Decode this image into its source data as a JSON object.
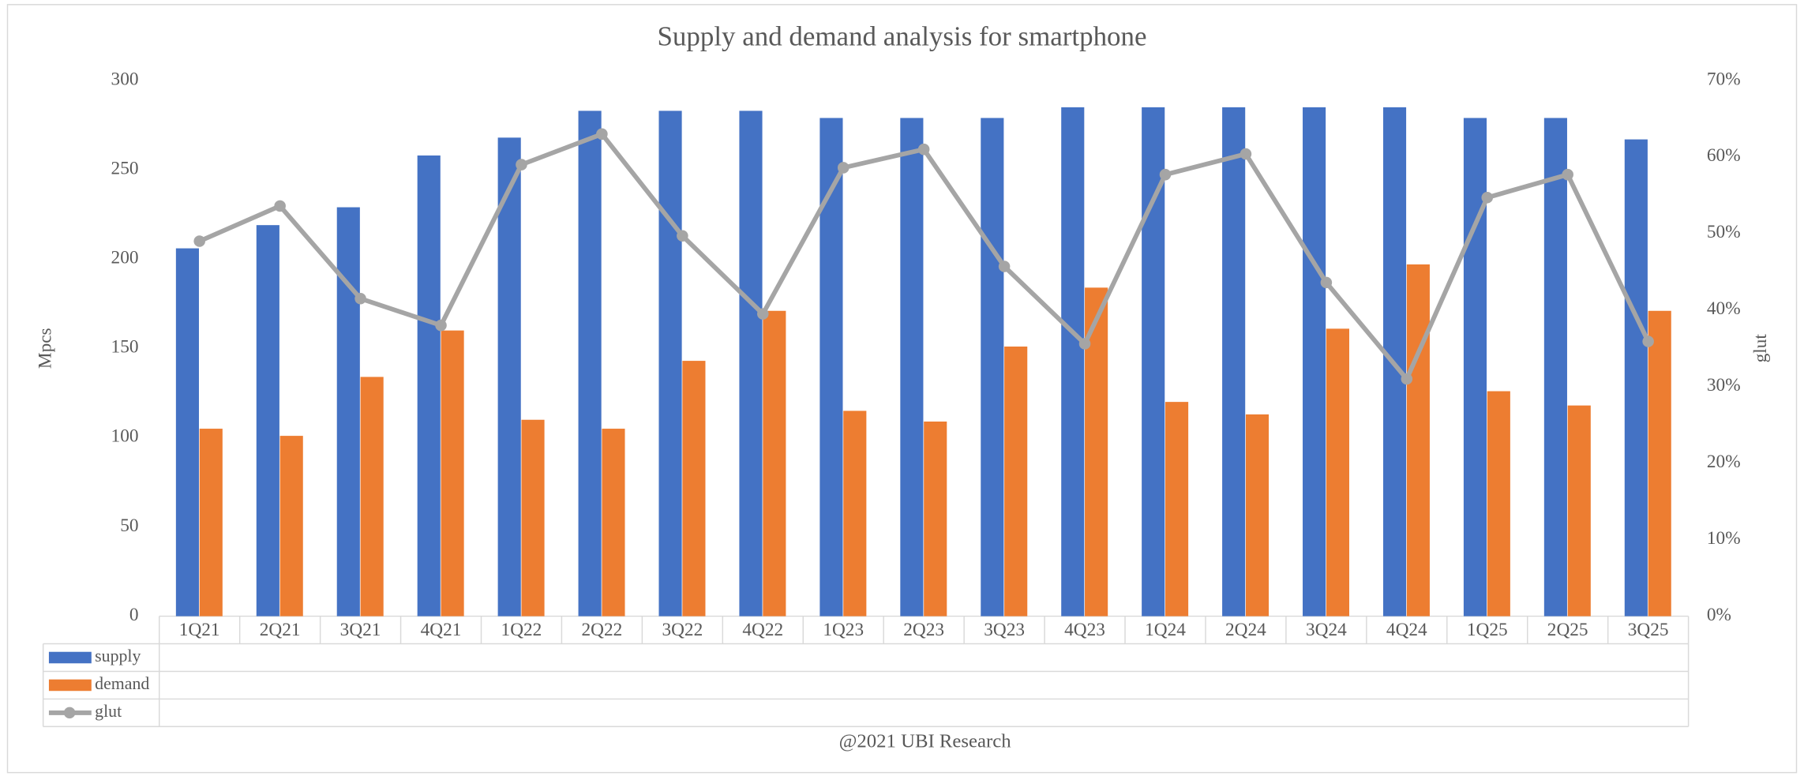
{
  "chart_data": {
    "type": "bar",
    "title": "Supply and demand analysis for smartphone",
    "ylabel": "Mpcs",
    "y2label": "glut",
    "source": "@2021 UBI Research",
    "categories": [
      "1Q21",
      "2Q21",
      "3Q21",
      "4Q21",
      "1Q22",
      "2Q22",
      "3Q22",
      "4Q22",
      "1Q23",
      "2Q23",
      "3Q23",
      "4Q23",
      "1Q24",
      "2Q24",
      "3Q24",
      "4Q24",
      "1Q25",
      "2Q25",
      "3Q25"
    ],
    "series": [
      {
        "name": "supply",
        "type": "bar",
        "color": "#4472c4",
        "values": [
          206,
          219,
          229,
          258,
          268,
          283,
          283,
          283,
          279,
          279,
          279,
          285,
          285,
          285,
          285,
          285,
          279,
          279,
          267
        ]
      },
      {
        "name": "demand",
        "type": "bar",
        "color": "#ed7d31",
        "values": [
          105,
          101,
          134,
          160,
          110,
          105,
          143,
          171,
          115,
          109,
          151,
          184,
          120,
          113,
          161,
          197,
          126,
          118,
          171
        ]
      },
      {
        "name": "glut",
        "type": "line",
        "axis": "y2",
        "color": "#a5a5a5",
        "values": [
          49,
          53.6,
          41.5,
          38,
          59,
          63,
          49.7,
          39.5,
          58.6,
          61,
          45.7,
          35.6,
          57.7,
          60.4,
          43.6,
          31,
          54.7,
          57.7,
          35.9
        ]
      }
    ],
    "ylim": [
      0,
      300
    ],
    "yticks": [
      0,
      50,
      100,
      150,
      200,
      250,
      300
    ],
    "y2lim": [
      0,
      70
    ],
    "y2ticks": [
      {
        "value": 0,
        "label": "0%"
      },
      {
        "value": 10,
        "label": "10%"
      },
      {
        "value": 20,
        "label": "20%"
      },
      {
        "value": 30,
        "label": "30%"
      },
      {
        "value": 40,
        "label": "40%"
      },
      {
        "value": 50,
        "label": "50%"
      },
      {
        "value": 60,
        "label": "60%"
      },
      {
        "value": 70,
        "label": "70%"
      }
    ],
    "grid": false
  }
}
